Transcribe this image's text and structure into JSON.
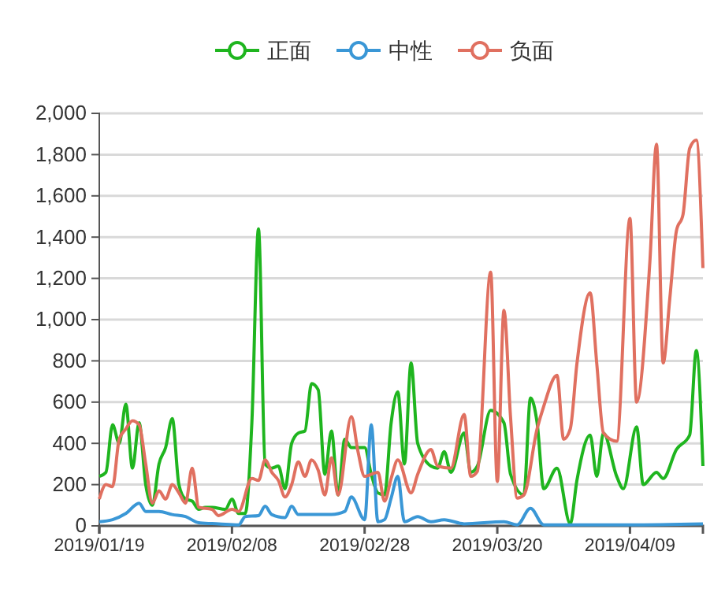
{
  "chart_data": {
    "type": "line",
    "legend": "top",
    "grid": "y",
    "marker": "none",
    "line_style": "solid",
    "xlim": [
      "2019-01-19",
      "2019-04-20"
    ],
    "xticks": [
      {
        "value": "2019-01-19",
        "label": "2019/01/19"
      },
      {
        "value": "2019-02-08",
        "label": "2019/02/08"
      },
      {
        "value": "2019-02-28",
        "label": "2019/02/28"
      },
      {
        "value": "2019-03-20",
        "label": "2019/03/20"
      },
      {
        "value": "2019-04-09",
        "label": "2019/04/09"
      }
    ],
    "ylim": [
      0,
      2000
    ],
    "yticks": [
      {
        "value": 0,
        "label": "0"
      },
      {
        "value": 200,
        "label": "200"
      },
      {
        "value": 400,
        "label": "400"
      },
      {
        "value": 600,
        "label": "600"
      },
      {
        "value": 800,
        "label": "800"
      },
      {
        "value": 1000,
        "label": "1,000"
      },
      {
        "value": 1200,
        "label": "1,200"
      },
      {
        "value": 1400,
        "label": "1,400"
      },
      {
        "value": 1600,
        "label": "1,600"
      },
      {
        "value": 1800,
        "label": "1,800"
      },
      {
        "value": 2000,
        "label": "2,000"
      }
    ],
    "series": [
      {
        "name": "正面",
        "color": "#1fb51f",
        "x": [
          "2019-01-19",
          "2019-01-20",
          "2019-01-21",
          "2019-01-22",
          "2019-01-23",
          "2019-01-24",
          "2019-01-25",
          "2019-01-26",
          "2019-01-27",
          "2019-01-28",
          "2019-01-29",
          "2019-01-30",
          "2019-01-31",
          "2019-02-01",
          "2019-02-02",
          "2019-02-03",
          "2019-02-04",
          "2019-02-05",
          "2019-02-07",
          "2019-02-08",
          "2019-02-09",
          "2019-02-10",
          "2019-02-11",
          "2019-02-12",
          "2019-02-13",
          "2019-02-14",
          "2019-02-15",
          "2019-02-16",
          "2019-02-17",
          "2019-02-18",
          "2019-02-19",
          "2019-02-20",
          "2019-02-21",
          "2019-02-22",
          "2019-02-23",
          "2019-02-24",
          "2019-02-25",
          "2019-02-26",
          "2019-02-28",
          "2019-03-01",
          "2019-03-02",
          "2019-03-03",
          "2019-03-04",
          "2019-03-05",
          "2019-03-06",
          "2019-03-07",
          "2019-03-08",
          "2019-03-10",
          "2019-03-11",
          "2019-03-12",
          "2019-03-13",
          "2019-03-15",
          "2019-03-16",
          "2019-03-17",
          "2019-03-19",
          "2019-03-21",
          "2019-03-22",
          "2019-03-24",
          "2019-03-25",
          "2019-03-26",
          "2019-03-27",
          "2019-03-29",
          "2019-03-31",
          "2019-04-01",
          "2019-04-03",
          "2019-04-04",
          "2019-04-05",
          "2019-04-07",
          "2019-04-08",
          "2019-04-10",
          "2019-04-11",
          "2019-04-13",
          "2019-04-14",
          "2019-04-16",
          "2019-04-18",
          "2019-04-19",
          "2019-04-20"
        ],
        "values": [
          240,
          260,
          490,
          400,
          590,
          280,
          500,
          200,
          100,
          300,
          380,
          520,
          200,
          130,
          120,
          80,
          90,
          90,
          80,
          130,
          60,
          60,
          500,
          1440,
          300,
          280,
          290,
          180,
          400,
          450,
          460,
          690,
          660,
          250,
          460,
          150,
          420,
          380,
          380,
          250,
          160,
          150,
          500,
          650,
          300,
          790,
          400,
          290,
          280,
          360,
          260,
          450,
          260,
          290,
          560,
          500,
          250,
          150,
          620,
          500,
          180,
          280,
          10,
          220,
          440,
          240,
          450,
          240,
          180,
          480,
          200,
          260,
          230,
          370,
          440,
          850,
          290
        ]
      },
      {
        "name": "中性",
        "color": "#3a97d6",
        "x": [
          "2019-01-19",
          "2019-01-21",
          "2019-01-23",
          "2019-01-25",
          "2019-01-26",
          "2019-01-28",
          "2019-01-30",
          "2019-02-01",
          "2019-02-03",
          "2019-02-06",
          "2019-02-09",
          "2019-02-10",
          "2019-02-12",
          "2019-02-13",
          "2019-02-14",
          "2019-02-16",
          "2019-02-17",
          "2019-02-18",
          "2019-02-21",
          "2019-02-23",
          "2019-02-25",
          "2019-02-26",
          "2019-02-28",
          "2019-03-01",
          "2019-03-02",
          "2019-03-03",
          "2019-03-04",
          "2019-03-05",
          "2019-03-06",
          "2019-03-08",
          "2019-03-10",
          "2019-03-12",
          "2019-03-15",
          "2019-03-21",
          "2019-03-23",
          "2019-03-25",
          "2019-03-27",
          "2019-04-09",
          "2019-04-20"
        ],
        "values": [
          20,
          30,
          60,
          110,
          70,
          70,
          55,
          45,
          15,
          10,
          5,
          45,
          50,
          95,
          55,
          40,
          95,
          55,
          55,
          55,
          70,
          140,
          30,
          490,
          20,
          30,
          135,
          240,
          20,
          45,
          20,
          30,
          10,
          20,
          5,
          85,
          5,
          5,
          10
        ]
      },
      {
        "name": "负面",
        "color": "#e07060",
        "x": [
          "2019-01-19",
          "2019-01-20",
          "2019-01-21",
          "2019-01-22",
          "2019-01-23",
          "2019-01-24",
          "2019-01-25",
          "2019-01-26",
          "2019-01-27",
          "2019-01-28",
          "2019-01-29",
          "2019-01-30",
          "2019-01-31",
          "2019-02-01",
          "2019-02-02",
          "2019-02-03",
          "2019-02-05",
          "2019-02-06",
          "2019-02-08",
          "2019-02-09",
          "2019-02-11",
          "2019-02-12",
          "2019-02-13",
          "2019-02-14",
          "2019-02-15",
          "2019-02-16",
          "2019-02-17",
          "2019-02-18",
          "2019-02-19",
          "2019-02-20",
          "2019-02-21",
          "2019-02-22",
          "2019-02-23",
          "2019-02-24",
          "2019-02-26",
          "2019-02-27",
          "2019-02-28",
          "2019-03-02",
          "2019-03-03",
          "2019-03-04",
          "2019-03-05",
          "2019-03-07",
          "2019-03-08",
          "2019-03-10",
          "2019-03-11",
          "2019-03-13",
          "2019-03-15",
          "2019-03-16",
          "2019-03-17",
          "2019-03-19",
          "2019-03-20",
          "2019-03-21",
          "2019-03-22",
          "2019-03-23",
          "2019-03-24",
          "2019-03-26",
          "2019-03-27",
          "2019-03-29",
          "2019-03-30",
          "2019-03-31",
          "2019-04-01",
          "2019-04-03",
          "2019-04-04",
          "2019-04-05",
          "2019-04-07",
          "2019-04-09",
          "2019-04-10",
          "2019-04-12",
          "2019-04-13",
          "2019-04-14",
          "2019-04-15",
          "2019-04-16",
          "2019-04-17",
          "2019-04-18",
          "2019-04-19",
          "2019-04-20"
        ],
        "values": [
          130,
          200,
          190,
          420,
          470,
          510,
          490,
          300,
          110,
          170,
          130,
          200,
          160,
          110,
          280,
          90,
          80,
          50,
          80,
          70,
          230,
          220,
          320,
          260,
          220,
          140,
          200,
          310,
          240,
          320,
          270,
          150,
          330,
          150,
          530,
          360,
          240,
          260,
          120,
          230,
          320,
          160,
          250,
          370,
          290,
          280,
          540,
          240,
          265,
          1230,
          215,
          1045,
          525,
          135,
          150,
          470,
          580,
          730,
          420,
          470,
          785,
          1130,
          785,
          450,
          410,
          1490,
          600,
          1280,
          1850,
          790,
          1100,
          1430,
          1510,
          1830,
          1870,
          1250
        ]
      }
    ]
  }
}
